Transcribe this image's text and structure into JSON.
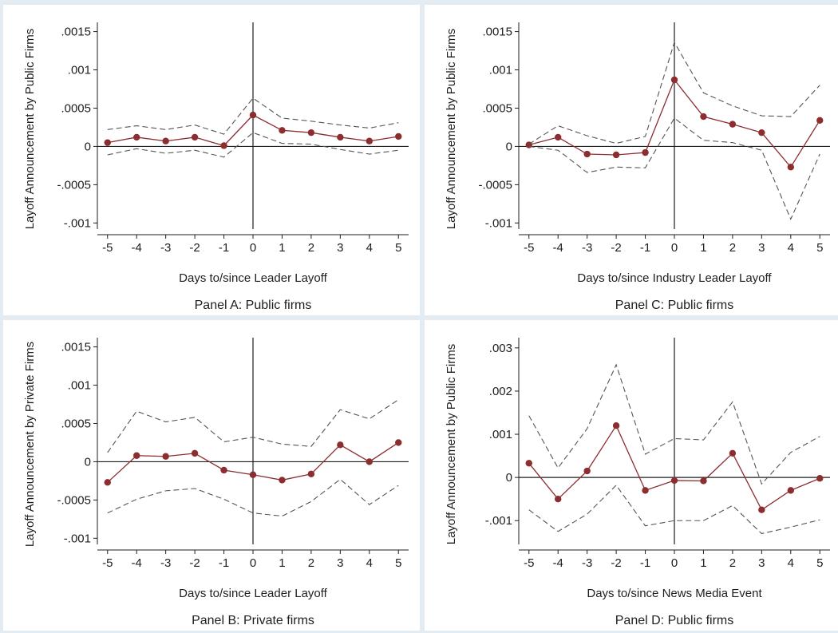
{
  "colors": {
    "point_estimate": "#8c2d2f",
    "confidence_band": "#555555",
    "axis": "#1e1e1e",
    "background": "#e4ecf3"
  },
  "chart_data": [
    {
      "id": "panel-a",
      "type": "line",
      "caption": "Panel A: Public firms",
      "xlabel": "Days to/since Leader Layoff",
      "ylabel": "Layoff Announcement by Public Firms",
      "x": [
        -5,
        -4,
        -3,
        -2,
        -1,
        0,
        1,
        2,
        3,
        4,
        5
      ],
      "x_tick_labels": [
        "-5",
        "-4",
        "-3",
        "-2",
        "-1",
        "0",
        "1",
        "2",
        "3",
        "4",
        "5"
      ],
      "yticks": [
        0.0015,
        0.001,
        0.0005,
        0,
        -0.0005,
        -0.001
      ],
      "ytick_labels": [
        ".0015",
        ".001",
        ".0005",
        "0",
        "-.0005",
        "-.001"
      ],
      "ylim": [
        -0.00108,
        0.0016
      ],
      "series": [
        {
          "role": "estimate",
          "values": [
            5e-05,
            0.00012,
            7e-05,
            0.00012,
            1e-05,
            0.00041,
            0.00021,
            0.00018,
            0.00012,
            7e-05,
            0.00013
          ]
        },
        {
          "role": "upper-ci",
          "values": [
            0.00022,
            0.00027,
            0.00022,
            0.00028,
            0.00016,
            0.00063,
            0.00037,
            0.00033,
            0.00028,
            0.00024,
            0.00031
          ]
        },
        {
          "role": "lower-ci",
          "values": [
            -0.00011,
            -3e-05,
            -9e-05,
            -5e-05,
            -0.00014,
            0.00018,
            4e-05,
            3e-05,
            -4e-05,
            -0.0001,
            -5e-05
          ]
        }
      ]
    },
    {
      "id": "panel-c",
      "type": "line",
      "caption": "Panel C: Public firms",
      "xlabel": "Days to/since Industry Leader Layoff",
      "ylabel": "Layoff Announcement by Public Firms",
      "x": [
        -5,
        -4,
        -3,
        -2,
        -1,
        0,
        1,
        2,
        3,
        4,
        5
      ],
      "x_tick_labels": [
        "-5",
        "-4",
        "-3",
        "-2",
        "-1",
        "0",
        "1",
        "2",
        "3",
        "4",
        "5"
      ],
      "yticks": [
        0.0015,
        0.001,
        0.0005,
        0,
        -0.0005,
        -0.001
      ],
      "ytick_labels": [
        ".0015",
        ".001",
        ".0005",
        "0",
        "-.0005",
        "-.001"
      ],
      "ylim": [
        -0.00108,
        0.0016
      ],
      "series": [
        {
          "role": "estimate",
          "values": [
            2e-05,
            0.00012,
            -0.0001,
            -0.00011,
            -8e-05,
            0.00087,
            0.00039,
            0.00029,
            0.00018,
            -0.00027,
            0.00034
          ]
        },
        {
          "role": "upper-ci",
          "values": [
            3e-05,
            0.00027,
            0.00014,
            4e-05,
            0.00013,
            0.00136,
            0.0007,
            0.00053,
            0.0004,
            0.00039,
            0.0008
          ]
        },
        {
          "role": "lower-ci",
          "values": [
            0.0,
            -5e-05,
            -0.00034,
            -0.00027,
            -0.00028,
            0.00037,
            8e-05,
            5e-05,
            -5e-05,
            -0.00095,
            -0.0001
          ]
        }
      ]
    },
    {
      "id": "panel-b",
      "type": "line",
      "caption": "Panel B: Private firms",
      "xlabel": "Days to/since Leader Layoff",
      "ylabel": "Layoff Announcement by Private Firms",
      "x": [
        -5,
        -4,
        -3,
        -2,
        -1,
        0,
        1,
        2,
        3,
        4,
        5
      ],
      "x_tick_labels": [
        "-5",
        "-4",
        "-3",
        "-2",
        "-1",
        "0",
        "1",
        "2",
        "3",
        "4",
        "5"
      ],
      "yticks": [
        0.0015,
        0.001,
        0.0005,
        0,
        -0.0005,
        -0.001
      ],
      "ytick_labels": [
        ".0015",
        ".001",
        ".0005",
        "0",
        "-.0005",
        "-.001"
      ],
      "ylim": [
        -0.00108,
        0.0016
      ],
      "series": [
        {
          "role": "estimate",
          "values": [
            -0.00027,
            8e-05,
            7e-05,
            0.00011,
            -0.00011,
            -0.00017,
            -0.00024,
            -0.00016,
            0.00022,
            0.0,
            0.00025
          ]
        },
        {
          "role": "upper-ci",
          "values": [
            0.00012,
            0.00066,
            0.00052,
            0.00058,
            0.00026,
            0.00032,
            0.00023,
            0.0002,
            0.00068,
            0.00056,
            0.00081
          ]
        },
        {
          "role": "lower-ci",
          "values": [
            -0.00067,
            -0.00049,
            -0.00038,
            -0.00035,
            -0.00049,
            -0.00067,
            -0.00071,
            -0.00052,
            -0.00023,
            -0.00056,
            -0.00031
          ]
        }
      ]
    },
    {
      "id": "panel-d",
      "type": "line",
      "caption": "Panel D: Public firms",
      "xlabel": "Days to/since News Media Event",
      "ylabel": "Layoff Announcement by Public Firms",
      "x": [
        -5,
        -4,
        -3,
        -2,
        -1,
        0,
        1,
        2,
        3,
        4,
        5
      ],
      "x_tick_labels": [
        "-5",
        "-4",
        "-3",
        "-2",
        "-1",
        "0",
        "1",
        "2",
        "3",
        "4",
        "5"
      ],
      "yticks": [
        0.003,
        0.002,
        0.001,
        0,
        -0.001
      ],
      "ytick_labels": [
        ".003",
        ".002",
        ".001",
        "0",
        "-.001"
      ],
      "ylim": [
        -0.00155,
        0.0032
      ],
      "series": [
        {
          "role": "estimate",
          "values": [
            0.00033,
            -0.0005,
            0.00015,
            0.0012,
            -0.0003,
            -7e-05,
            -8e-05,
            0.00056,
            -0.00075,
            -0.0003,
            -2e-05
          ]
        },
        {
          "role": "upper-ci",
          "values": [
            0.00143,
            0.00022,
            0.00113,
            0.00261,
            0.00054,
            0.0009,
            0.00087,
            0.00175,
            -0.00015,
            0.00058,
            0.00095
          ]
        },
        {
          "role": "lower-ci",
          "values": [
            -0.00075,
            -0.00125,
            -0.00085,
            -0.00018,
            -0.00112,
            -0.001,
            -0.001,
            -0.00065,
            -0.0013,
            -0.00115,
            -0.00098
          ]
        }
      ]
    }
  ]
}
